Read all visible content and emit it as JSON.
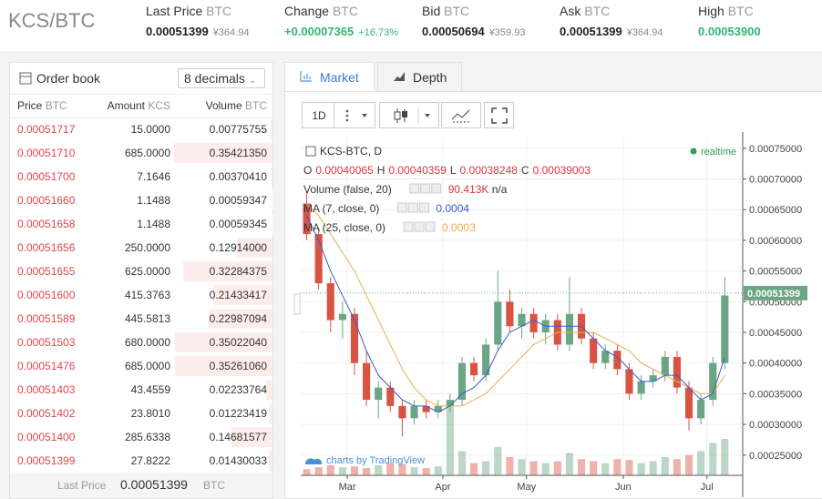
{
  "header": {
    "pair": "KCS/BTC",
    "stats": [
      {
        "label": "Last Price",
        "unit": "BTC",
        "value": "0.00051399",
        "sub": "¥364.94"
      },
      {
        "label": "Change",
        "unit": "BTC",
        "value": "+0.00007365",
        "sub": "+16.73%",
        "color": "#2eb872"
      },
      {
        "label": "Bid",
        "unit": "BTC",
        "value": "0.00050694",
        "sub": "¥359.93"
      },
      {
        "label": "Ask",
        "unit": "BTC",
        "value": "0.00051399",
        "sub": "¥364.94"
      },
      {
        "label": "High",
        "unit": "BTC",
        "value": "0.00053900",
        "color": "#2eb872"
      }
    ]
  },
  "order_book": {
    "title": "Order book",
    "decimals": "8 decimals",
    "columns": [
      {
        "label": "Price",
        "unit": "BTC"
      },
      {
        "label": "Amount",
        "unit": "KCS"
      },
      {
        "label": "Volume",
        "unit": "BTC"
      }
    ],
    "rows": [
      [
        "0.00051717",
        "15.0000",
        "0.00775755"
      ],
      [
        "0.00051710",
        "685.0000",
        "0.35421350"
      ],
      [
        "0.00051700",
        "7.1646",
        "0.00370410"
      ],
      [
        "0.00051660",
        "1.1488",
        "0.00059347"
      ],
      [
        "0.00051658",
        "1.1488",
        "0.00059345"
      ],
      [
        "0.00051656",
        "250.0000",
        "0.12914000"
      ],
      [
        "0.00051655",
        "625.0000",
        "0.32284375"
      ],
      [
        "0.00051600",
        "415.3763",
        "0.21433417"
      ],
      [
        "0.00051589",
        "445.5813",
        "0.22987094"
      ],
      [
        "0.00051503",
        "680.0000",
        "0.35022040"
      ],
      [
        "0.00051476",
        "685.0000",
        "0.35261060"
      ],
      [
        "0.00051403",
        "43.4559",
        "0.02233764"
      ],
      [
        "0.00051402",
        "23.8010",
        "0.01223419"
      ],
      [
        "0.00051400",
        "285.6338",
        "0.14681577"
      ],
      [
        "0.00051399",
        "27.8222",
        "0.01430033"
      ]
    ],
    "last_price": {
      "label": "Last Price",
      "value": "0.00051399",
      "unit": "BTC"
    }
  },
  "tabs": [
    "Market",
    "Depth"
  ],
  "toolbar": {
    "interval": "1D"
  },
  "chart_data": {
    "type": "candlestick",
    "symbol": "KCS-BTC, D",
    "ohlc_legend": [
      {
        "key": "O",
        "value": "0.00040065"
      },
      {
        "key": "H",
        "value": "0.00040359"
      },
      {
        "key": "L",
        "value": "0.00038248"
      },
      {
        "key": "C",
        "value": "0.00039003"
      }
    ],
    "indicators": [
      {
        "name": "Volume (false, 20)",
        "value": "90.413K",
        "extra": "n/a",
        "color": "#e0353b"
      },
      {
        "name": "MA (7, close, 0)",
        "value": "0.0004",
        "color": "#3a59d6"
      },
      {
        "name": "MA (25, close, 0)",
        "value": "0.0003",
        "color": "#e8b04a"
      }
    ],
    "realtime": "realtime",
    "credit": "charts by TradingView",
    "xlim": [
      -0.5,
      36.5
    ],
    "xticks": [
      {
        "value": 3.4,
        "label": "Mar"
      },
      {
        "value": 11.4,
        "label": "Apr"
      },
      {
        "value": 18.4,
        "label": "May"
      },
      {
        "value": 26.5,
        "label": "Jun"
      },
      {
        "value": 33.5,
        "label": "Jul"
      }
    ],
    "ylim": [
      0.000217,
      0.000769
    ],
    "yticks": [
      {
        "value": 0.00025,
        "label": "0.00025000"
      },
      {
        "value": 0.0003,
        "label": "0.00030000"
      },
      {
        "value": 0.00035,
        "label": "0.00035000"
      },
      {
        "value": 0.0004,
        "label": "0.00040000"
      },
      {
        "value": 0.00045,
        "label": "0.00045000"
      },
      {
        "value": 0.0005,
        "label": "0.00050000"
      },
      {
        "value": 0.00055,
        "label": "0.00055000"
      },
      {
        "value": 0.0006,
        "label": "0.00060000"
      },
      {
        "value": 0.00065,
        "label": "0.00065000"
      },
      {
        "value": 0.0007,
        "label": "0.00070000"
      },
      {
        "value": 0.00075,
        "label": "0.00075000"
      }
    ],
    "price_line": {
      "value": 0.00051399,
      "label": "0.00051399"
    },
    "up_color": "#6ba583",
    "down_color": "#d75442",
    "open": [
      0.00066,
      0.00061,
      0.00053,
      0.00047,
      0.00048,
      0.0004,
      0.00034,
      0.00036,
      0.00033,
      0.00031,
      0.00033,
      0.00032,
      0.00033,
      0.00034,
      0.0004,
      0.00038,
      0.00043,
      0.0005,
      0.00046,
      0.00048,
      0.00045,
      0.00047,
      0.00043,
      0.00048,
      0.00044,
      0.0004,
      0.00042,
      0.00039,
      0.00035,
      0.00037,
      0.00038,
      0.00041,
      0.00036,
      0.00031,
      0.00034,
      0.0004
    ],
    "high": [
      0.00068,
      0.00062,
      0.00054,
      0.0005,
      0.00049,
      0.00042,
      0.00037,
      0.00037,
      0.00034,
      0.00034,
      0.00034,
      0.00034,
      0.00035,
      0.00041,
      0.00041,
      0.00044,
      0.00055,
      0.00052,
      0.00049,
      0.00049,
      0.00048,
      0.00048,
      0.00054,
      0.00049,
      0.00045,
      0.00043,
      0.00043,
      0.0004,
      0.00038,
      0.00039,
      0.00042,
      0.00042,
      0.00037,
      0.00035,
      0.00041,
      0.00054
    ],
    "low": [
      0.0006,
      0.00052,
      0.00045,
      0.00044,
      0.00038,
      0.00033,
      0.00031,
      0.00032,
      0.00028,
      0.0003,
      0.00031,
      0.00031,
      0.00032,
      0.00033,
      0.00037,
      0.00037,
      0.00042,
      0.00045,
      0.00044,
      0.00044,
      0.00043,
      0.00042,
      0.00042,
      0.00043,
      0.00039,
      0.00039,
      0.00038,
      0.00034,
      0.00034,
      0.00036,
      0.00037,
      0.00035,
      0.00029,
      0.0003,
      0.00033,
      0.00039
    ],
    "close": [
      0.00061,
      0.00053,
      0.00047,
      0.00048,
      0.0004,
      0.00034,
      0.00036,
      0.00033,
      0.00031,
      0.00033,
      0.00032,
      0.00033,
      0.00034,
      0.0004,
      0.00038,
      0.00043,
      0.0005,
      0.00046,
      0.00048,
      0.00045,
      0.00047,
      0.00043,
      0.00048,
      0.00044,
      0.0004,
      0.00042,
      0.00039,
      0.00035,
      0.00037,
      0.00038,
      0.00041,
      0.00036,
      0.00031,
      0.00034,
      0.0004,
      0.00051
    ],
    "volume": [
      15,
      20,
      25,
      20,
      22,
      18,
      25,
      30,
      28,
      20,
      18,
      22,
      180,
      60,
      30,
      35,
      70,
      45,
      40,
      35,
      30,
      35,
      55,
      40,
      35,
      30,
      40,
      38,
      30,
      35,
      45,
      40,
      50,
      60,
      80,
      90
    ],
    "ma7": [
      0.00064,
      0.0006,
      0.00055,
      0.00051,
      0.00047,
      0.00042,
      0.00038,
      0.00036,
      0.00034,
      0.00033,
      0.00033,
      0.00032,
      0.00033,
      0.00035,
      0.00036,
      0.00038,
      0.00042,
      0.00045,
      0.00046,
      0.00047,
      0.00046,
      0.00046,
      0.00046,
      0.00046,
      0.00044,
      0.00042,
      0.00041,
      0.00039,
      0.00037,
      0.00037,
      0.00038,
      0.00038,
      0.00036,
      0.00034,
      0.00035,
      0.00041
    ],
    "ma25": [
      0.00066,
      0.00064,
      0.00061,
      0.00058,
      0.00055,
      0.00051,
      0.00047,
      0.00043,
      0.00039,
      0.00036,
      0.00034,
      0.00033,
      0.00033,
      0.00033,
      0.00034,
      0.00035,
      0.00037,
      0.00039,
      0.00041,
      0.00043,
      0.00044,
      0.00045,
      0.00045,
      0.00045,
      0.00045,
      0.00044,
      0.00043,
      0.00042,
      0.0004,
      0.00039,
      0.00038,
      0.00037,
      0.00036,
      0.00035,
      0.00035,
      0.00038
    ]
  }
}
